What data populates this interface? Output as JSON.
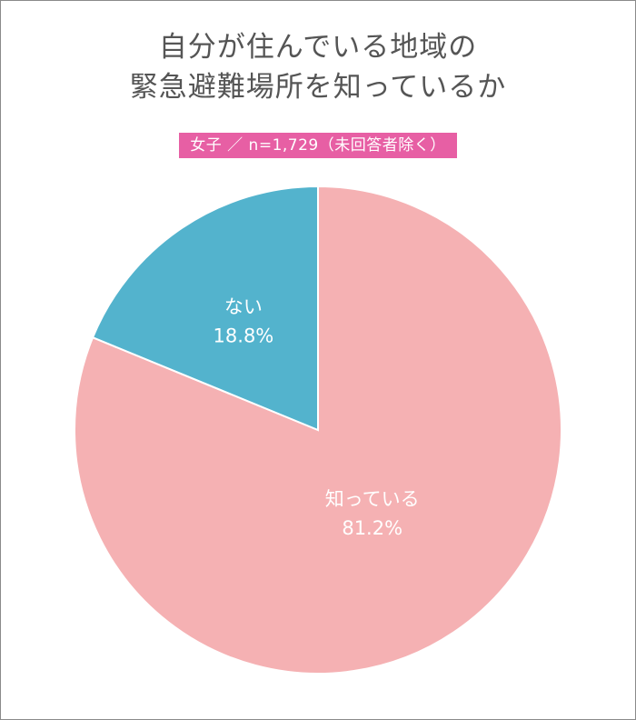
{
  "title_lines": [
    "自分が住んでいる地域の",
    "緊急避難場所を知っているか"
  ],
  "subtitle": "女子 ／ n=1,729（未回答者除く）",
  "colors": {
    "accent": "#e75fa4",
    "slice_known": "#f5b1b3",
    "slice_unknown": "#53b3cd"
  },
  "chart_data": {
    "type": "pie",
    "start": "12 o'clock",
    "direction": "clockwise",
    "slices": [
      {
        "label": "知っている",
        "value": 81.2,
        "value_label": "81.2%",
        "color": "#f5b1b3"
      },
      {
        "label": "ない",
        "value": 18.8,
        "value_label": "18.8%",
        "color": "#53b3cd"
      }
    ]
  }
}
